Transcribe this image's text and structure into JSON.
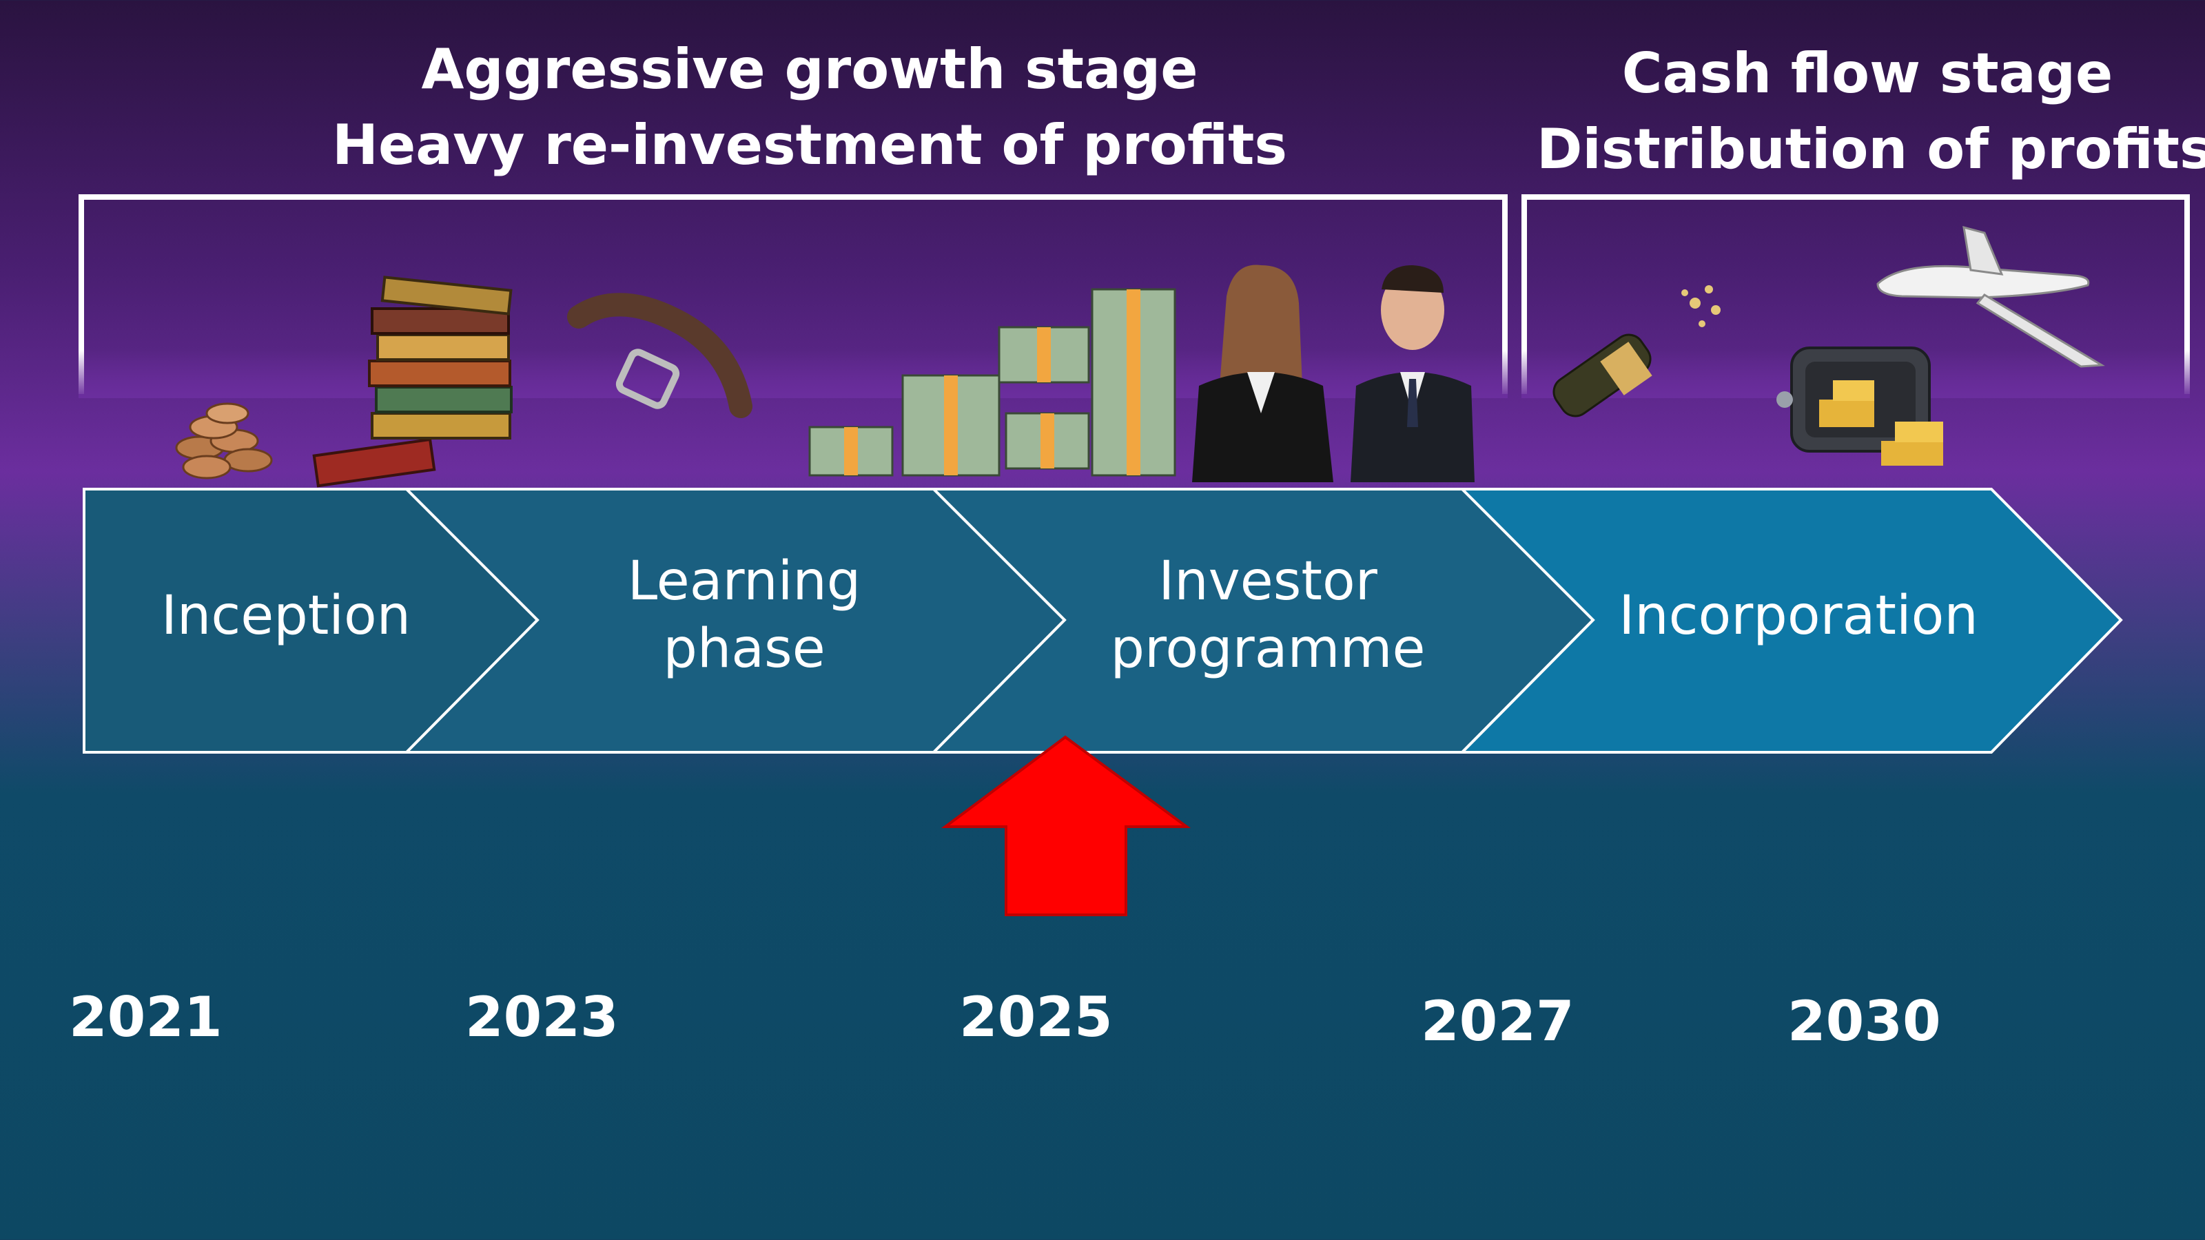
{
  "stages": {
    "growth": {
      "line1": "Aggressive growth stage",
      "line2": "Heavy re-investment of profits"
    },
    "cash_flow": {
      "line1": "Cash flow stage",
      "line2": "Distribution of profits"
    }
  },
  "phases": {
    "inception": {
      "line1": "Inception"
    },
    "learning": {
      "line1": "Learning",
      "line2": "phase"
    },
    "investor": {
      "line1": "Investor",
      "line2": "programme"
    },
    "incorporation": {
      "line1": "Incorporation"
    }
  },
  "years": {
    "y2021": "2021",
    "y2023": "2023",
    "y2025": "2025",
    "y2027": "2027",
    "y2030": "2030"
  },
  "colors": {
    "chevron_dark": "#185a78",
    "chevron_mid": "#1a6284",
    "chevron_light": "#0e78a6",
    "arrow_red": "#ff0000",
    "text": "#ffffff"
  },
  "icons": {
    "coins": "coins-icon",
    "books": "books-icon",
    "belt": "belt-icon",
    "cash": "cash-stacks-icon",
    "businesswoman": "businesswoman-icon",
    "businessman": "businessman-icon",
    "champagne": "champagne-icon",
    "safe": "safe-with-gold-icon",
    "jet": "private-jet-icon",
    "current_marker": "up-arrow-icon"
  }
}
